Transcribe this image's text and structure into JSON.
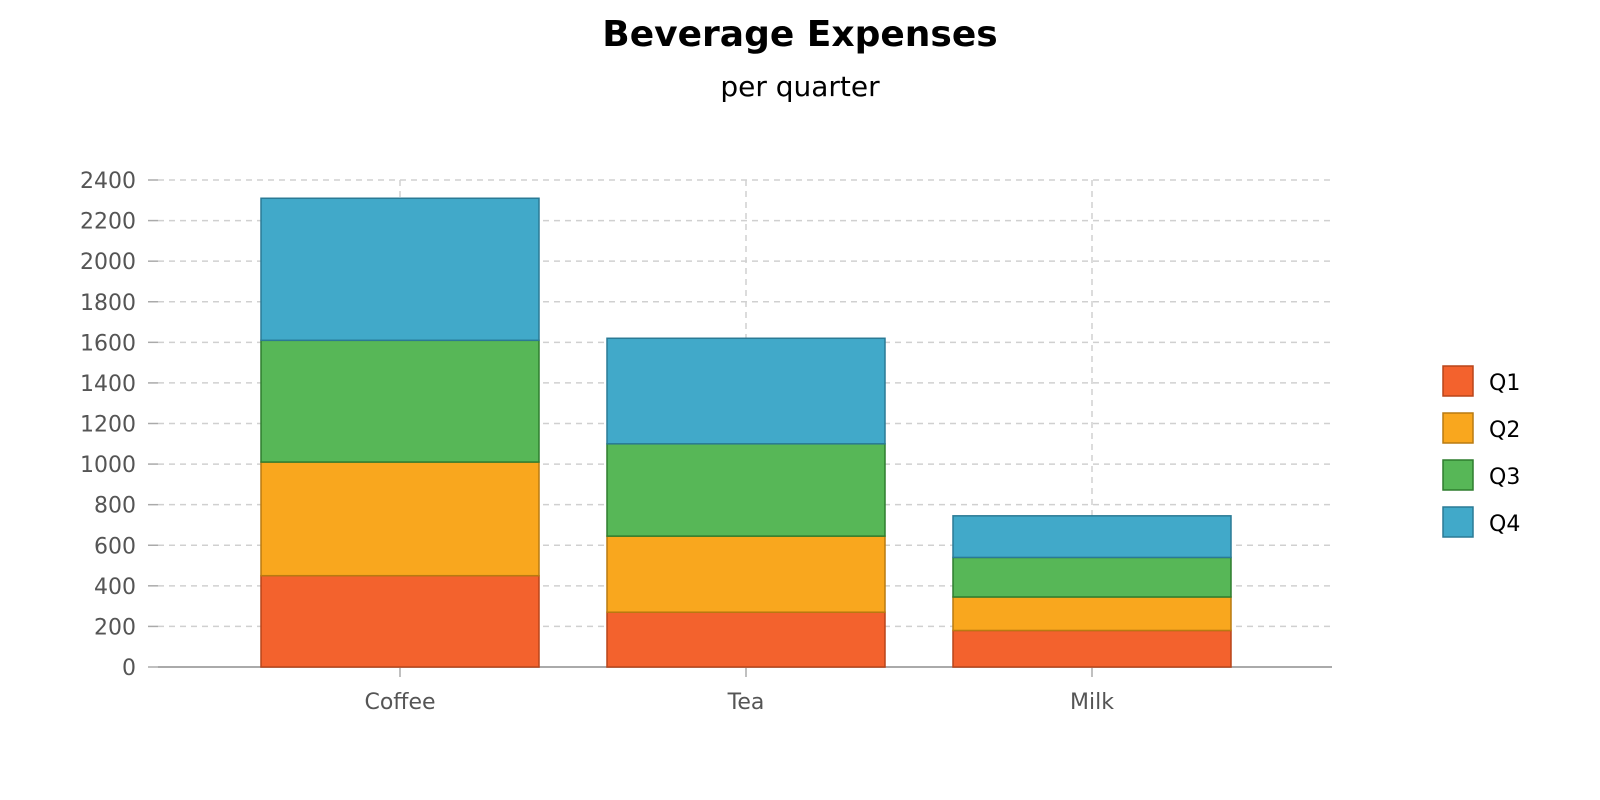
{
  "chart_data": {
    "type": "bar",
    "stacked": true,
    "title": "Beverage Expenses",
    "subtitle": "per quarter",
    "xlabel": "",
    "ylabel": "",
    "categories": [
      "Coffee",
      "Tea",
      "Milk"
    ],
    "series": [
      {
        "name": "Q1",
        "color": "#f3622d",
        "stroke": "#b8451a",
        "values": [
          450,
          270,
          180
        ]
      },
      {
        "name": "Q2",
        "color": "#f9a71e",
        "stroke": "#b97a10",
        "values": [
          560,
          375,
          165
        ]
      },
      {
        "name": "Q3",
        "color": "#57b757",
        "stroke": "#2f7d2f",
        "values": [
          600,
          455,
          195
        ]
      },
      {
        "name": "Q4",
        "color": "#41a9c9",
        "stroke": "#2a7a95",
        "values": [
          700,
          520,
          205
        ]
      }
    ],
    "ylim": [
      0,
      2400
    ],
    "yticks": [
      0,
      200,
      400,
      600,
      800,
      1000,
      1200,
      1400,
      1600,
      1800,
      2000,
      2200,
      2400
    ],
    "grid": true,
    "legend_position": "right"
  }
}
